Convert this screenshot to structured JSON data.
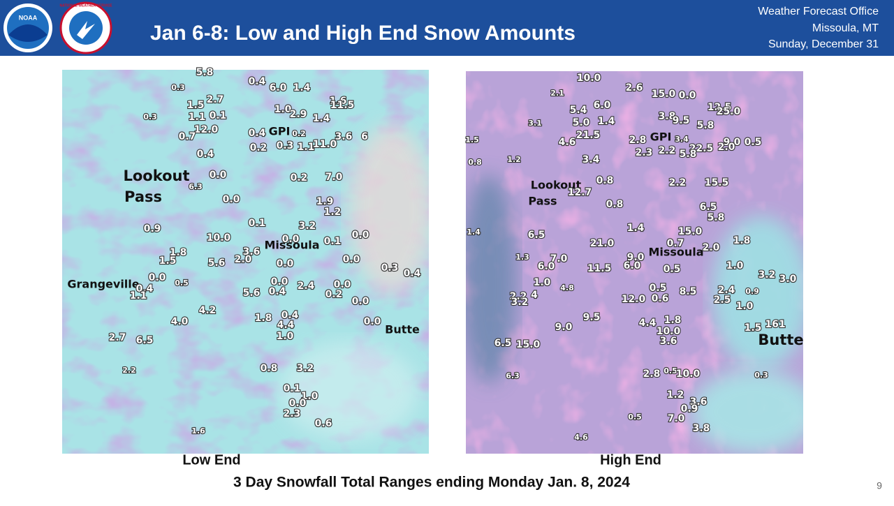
{
  "header": {
    "title": "Jan 6-8:  Low and High End Snow Amounts",
    "logos": [
      "NOAA",
      "NATIONAL WEATHER SERVICE"
    ],
    "office": [
      "Weather Forecast Office",
      "Missoula, MT",
      "Sunday, December 31"
    ]
  },
  "maps": [
    {
      "caption": "Low End",
      "labels": [
        "5.8",
        "0.3",
        "0.4",
        "6.0",
        "1.4",
        "2.7",
        "1.5",
        "1.6",
        "11.5",
        "1.0",
        "2.9",
        "0.3",
        "1.1",
        "0.1",
        "1.4",
        "12.0",
        "0.4",
        "GPI",
        "0.2",
        "0.7",
        "3.6",
        "6",
        "0.2",
        "0.3",
        "1.1",
        "11.0",
        "0.4",
        "0.0",
        "0.2",
        "7.0",
        "Lookout",
        "Pass",
        "6.3",
        "0.0",
        "1.9",
        "1.2",
        "0.1",
        "3.2",
        "0.9",
        "10.0",
        "0.0",
        "0.0",
        "0.1",
        "Missoula",
        "1.8",
        "3.6",
        "1.5",
        "2.0",
        "5.6",
        "0.0",
        "0.0",
        "0.3",
        "0.4",
        "0.0",
        "0.5",
        "Grangeville",
        "0.4",
        "0.0",
        "2.4",
        "0.0",
        "1.1",
        "5.6",
        "0.4",
        "0.2",
        "0.0",
        "4.2",
        "0.4",
        "1.8",
        "0.0",
        "4.4",
        "4.0",
        "Butte",
        "1.0",
        "2.7",
        "6.5",
        "2.2",
        "0.8",
        "3.2",
        "0.1",
        "1.0",
        "0.0",
        "2.3",
        "0.6",
        "1.6"
      ]
    },
    {
      "caption": "High End",
      "labels": [
        "10.0",
        "2.6",
        "15.0",
        "0.0",
        "2.1",
        "6.0",
        "5.4",
        "12.5",
        "25.0",
        "3.8",
        "3.1",
        "5.0",
        "1.4",
        "9.5",
        "5.8",
        "21.5",
        "4.6",
        "GPI",
        "2.8",
        "3.4",
        "9.0",
        "0.5",
        "1.5",
        "2.3",
        "2.2",
        "22.5",
        "5.8",
        "2.0",
        "0.8",
        "1.2",
        "3.4",
        "Lookout",
        "Pass",
        "12.7",
        "0.8",
        "2.2",
        "15.5",
        "0.8",
        "6.5",
        "5.8",
        "1.4",
        "1.4",
        "15.0",
        "6.5",
        "21.0",
        "0.7",
        "2.0",
        "1.8",
        "Missoula",
        "1.3",
        "7.0",
        "9.0",
        "6.0",
        "11.5",
        "6.0",
        "1.0",
        "0.5",
        "3.2",
        "3.0",
        "1.0",
        "4.8",
        "0.5",
        "8.5",
        "2.4",
        "0.9",
        "2.2",
        "4",
        "3.2",
        "12.0",
        "0.6",
        "2.5",
        "1.0",
        "9.5",
        "4.4",
        "1.8",
        "10.0",
        "1.5",
        "161",
        "Butte",
        "9.0",
        "3.6",
        "6.5",
        "15.0",
        "6.3",
        "0.5",
        "2.8",
        "10.0",
        "0.3",
        "1.2",
        "3.6",
        "0.9",
        "7.0",
        "0.5",
        "3.8",
        "4.6"
      ]
    }
  ],
  "footer": {
    "caption": "3 Day Snowfall Total Ranges ending Monday Jan. 8, 2024",
    "page": "9"
  }
}
